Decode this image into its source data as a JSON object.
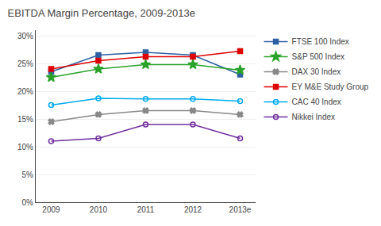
{
  "chart_data": {
    "type": "line",
    "title": "EBITDA Margin Percentage, 2009-2013e",
    "categories": [
      "2009",
      "2010",
      "2011",
      "2012",
      "2013e"
    ],
    "series": [
      {
        "name": "FTSE 100 Index",
        "color": "#2E5FA3",
        "marker": "square",
        "values": [
          23.5,
          26.5,
          27.0,
          26.5,
          23.0
        ]
      },
      {
        "name": "S&P 500 Index",
        "color": "#28A228",
        "marker": "star",
        "values": [
          22.5,
          24.0,
          24.8,
          24.8,
          23.8
        ]
      },
      {
        "name": "DAX 30 Index",
        "color": "#888888",
        "marker": "x",
        "values": [
          14.5,
          15.8,
          16.5,
          16.5,
          15.8
        ]
      },
      {
        "name": "EY M&E Study Group",
        "color": "#DD0000",
        "marker": "square",
        "values": [
          24.0,
          25.5,
          26.2,
          26.2,
          27.2
        ]
      },
      {
        "name": "CAC 40 Index",
        "color": "#00AAEE",
        "marker": "circle-open",
        "values": [
          17.5,
          18.7,
          18.6,
          18.6,
          18.2
        ]
      },
      {
        "name": "Nikkei Index",
        "color": "#7030A0",
        "marker": "circle-open",
        "values": [
          11.0,
          11.5,
          14.0,
          14.0,
          11.5
        ]
      }
    ],
    "ylim": [
      0,
      31
    ],
    "yticks": [
      {
        "value": 0,
        "label": "0%"
      },
      {
        "value": 5,
        "label": "5%"
      },
      {
        "value": 10,
        "label": "10%"
      },
      {
        "value": 15,
        "label": "15%"
      },
      {
        "value": 20,
        "label": "20%"
      },
      {
        "value": 25,
        "label": "25%"
      },
      {
        "value": 30,
        "label": "30%"
      }
    ],
    "grid": true,
    "legend": "right"
  }
}
